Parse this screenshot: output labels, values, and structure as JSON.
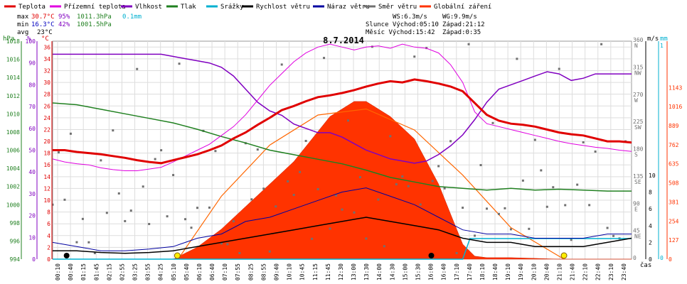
{
  "chart_data": {
    "type": "line",
    "title": "8.7.2014",
    "legend": [
      {
        "name": "Teplota",
        "color": "#e00000"
      },
      {
        "name": "Přízemní teplota",
        "color": "#e000e0"
      },
      {
        "name": "Vlhkost",
        "color": "#8000c0"
      },
      {
        "name": "Tlak",
        "color": "#208020"
      },
      {
        "name": "Srážky",
        "color": "#00b0d0"
      },
      {
        "name": "Rychlost větru",
        "color": "#000000"
      },
      {
        "name": "Náraz větru",
        "color": "#0000a0"
      },
      {
        "name": "Směr větru",
        "color": "#707070"
      },
      {
        "name": "Globální záření",
        "color": "#ff3300"
      }
    ],
    "stats": {
      "max_label": "max",
      "max_temp": "30.7°C",
      "max_hum": "95%",
      "max_press": "1011.3hPa",
      "precip": "0.1mm",
      "min_label": "min",
      "min_temp": "16.3°C",
      "min_hum": "42%",
      "min_press": "1001.5hPa",
      "avg_label": "avg",
      "avg_temp": "23°C"
    },
    "astro": {
      "ws": "WS:6.3m/s",
      "wg": "WG:9.9m/s",
      "slunce": "Slunce Východ:05:10",
      "slunce_z": "Západ:21:12",
      "mesic": "Měsíc  Východ:15:42",
      "mesic_z": "Západ:0:35"
    },
    "axes": {
      "hpa_label": "hPa",
      "pct_label": "%",
      "c_label": "°C",
      "hpa_ticks": [
        "1018",
        "1016",
        "1014",
        "1012",
        "1010",
        "1008",
        "1006",
        "1004",
        "1002",
        "1000",
        "998",
        "996",
        "994"
      ],
      "pct_ticks": [
        "100",
        "90",
        "80",
        "70",
        "60",
        "50",
        "40",
        "30",
        "20",
        "10",
        "0"
      ],
      "c_ticks": [
        "36",
        "34",
        "32",
        "30",
        "28",
        "26",
        "24",
        "22",
        "20",
        "18",
        "16",
        "14",
        "12",
        "10",
        "8",
        "6",
        "4",
        "2",
        "0"
      ],
      "dir_label": "m/s",
      "mm_label": "mm",
      "dir_ticks": [
        [
          "360",
          "N"
        ],
        [
          "315",
          "NW"
        ],
        [
          "270",
          "W"
        ],
        [
          "225",
          "SW"
        ],
        [
          "180",
          "S"
        ],
        [
          "135",
          "SE"
        ],
        [
          "90",
          "E"
        ],
        [
          "45",
          "NE"
        ],
        [
          "0",
          ""
        ]
      ],
      "ms_ticks": [
        "10",
        "8",
        "6",
        "4",
        "2",
        "0"
      ],
      "mm_ticks": [
        "1",
        "0"
      ],
      "rad_ticks": [
        "1143",
        "1016",
        "889",
        "762",
        "635",
        "508",
        "381",
        "254",
        "127",
        "0"
      ],
      "time_label": "čas",
      "time_ticks": [
        "00:10",
        "00:40",
        "01:15",
        "01:45",
        "02:15",
        "02:55",
        "03:25",
        "03:55",
        "04:25",
        "05:10",
        "05:40",
        "06:10",
        "06:40",
        "07:10",
        "07:55",
        "08:25",
        "08:55",
        "09:40",
        "10:10",
        "10:45",
        "11:15",
        "11:45",
        "12:30",
        "13:00",
        "13:30",
        "14:00",
        "14:30",
        "15:00",
        "15:30",
        "16:00",
        "16:40",
        "17:10",
        "17:40",
        "18:10",
        "18:40",
        "19:10",
        "19:40",
        "20:10",
        "20:40",
        "21:10",
        "21:40",
        "22:10",
        "22:40",
        "23:10",
        "23:40"
      ]
    },
    "ranges": {
      "temp_c": [
        0,
        37
      ],
      "humidity_pct": [
        0,
        100
      ],
      "pressure_hpa": [
        994,
        1018
      ],
      "wind_ms": [
        0,
        10
      ],
      "radiation_wm2": [
        0,
        1143
      ],
      "direction_deg": [
        0,
        360
      ],
      "hours": [
        0,
        24
      ]
    },
    "series_temperature": [
      [
        0.0,
        18.5
      ],
      [
        0.5,
        18.5
      ],
      [
        1.0,
        18.2
      ],
      [
        1.5,
        18.0
      ],
      [
        2.0,
        17.8
      ],
      [
        2.5,
        17.5
      ],
      [
        3.0,
        17.2
      ],
      [
        3.5,
        16.8
      ],
      [
        4.0,
        16.5
      ],
      [
        4.5,
        16.3
      ],
      [
        5.0,
        16.8
      ],
      [
        5.5,
        17.3
      ],
      [
        6.0,
        17.8
      ],
      [
        6.5,
        18.5
      ],
      [
        7.0,
        19.3
      ],
      [
        7.5,
        20.5
      ],
      [
        8.0,
        21.5
      ],
      [
        8.5,
        22.8
      ],
      [
        9.0,
        24.0
      ],
      [
        9.5,
        25.3
      ],
      [
        10.0,
        26.0
      ],
      [
        10.5,
        26.8
      ],
      [
        11.0,
        27.5
      ],
      [
        11.5,
        27.8
      ],
      [
        12.0,
        28.2
      ],
      [
        12.5,
        28.7
      ],
      [
        13.0,
        29.3
      ],
      [
        13.5,
        29.8
      ],
      [
        14.0,
        30.2
      ],
      [
        14.5,
        30.0
      ],
      [
        15.0,
        30.5
      ],
      [
        15.5,
        30.2
      ],
      [
        16.0,
        29.8
      ],
      [
        16.5,
        29.3
      ],
      [
        17.0,
        28.5
      ],
      [
        17.5,
        26.5
      ],
      [
        18.0,
        24.5
      ],
      [
        18.5,
        23.5
      ],
      [
        19.0,
        23.0
      ],
      [
        19.5,
        22.8
      ],
      [
        20.0,
        22.5
      ],
      [
        20.5,
        22.0
      ],
      [
        21.0,
        21.5
      ],
      [
        21.5,
        21.2
      ],
      [
        22.0,
        21.0
      ],
      [
        22.5,
        20.5
      ],
      [
        23.0,
        20.0
      ],
      [
        23.5,
        20.0
      ],
      [
        24.0,
        19.8
      ]
    ],
    "series_ground_temperature": [
      [
        0.0,
        17.0
      ],
      [
        0.5,
        16.5
      ],
      [
        1.0,
        16.2
      ],
      [
        1.5,
        16.0
      ],
      [
        2.0,
        15.5
      ],
      [
        2.5,
        15.2
      ],
      [
        3.0,
        15.0
      ],
      [
        3.5,
        15.0
      ],
      [
        4.0,
        15.3
      ],
      [
        4.5,
        15.6
      ],
      [
        5.0,
        16.5
      ],
      [
        5.5,
        17.5
      ],
      [
        6.0,
        18.5
      ],
      [
        6.5,
        19.5
      ],
      [
        7.0,
        21.0
      ],
      [
        7.5,
        22.5
      ],
      [
        8.0,
        24.5
      ],
      [
        8.5,
        27.0
      ],
      [
        9.0,
        29.5
      ],
      [
        9.5,
        31.5
      ],
      [
        10.0,
        33.5
      ],
      [
        10.5,
        35.0
      ],
      [
        11.0,
        36.0
      ],
      [
        11.5,
        36.5
      ],
      [
        12.0,
        36.0
      ],
      [
        12.5,
        35.5
      ],
      [
        13.0,
        36.0
      ],
      [
        13.5,
        36.2
      ],
      [
        14.0,
        35.8
      ],
      [
        14.5,
        36.5
      ],
      [
        15.0,
        36.0
      ],
      [
        15.5,
        35.8
      ],
      [
        16.0,
        35.0
      ],
      [
        16.5,
        33.0
      ],
      [
        17.0,
        30.0
      ],
      [
        17.5,
        25.0
      ],
      [
        18.0,
        23.0
      ],
      [
        18.5,
        22.5
      ],
      [
        19.0,
        22.0
      ],
      [
        19.5,
        21.5
      ],
      [
        20.0,
        21.0
      ],
      [
        20.5,
        20.5
      ],
      [
        21.0,
        20.0
      ],
      [
        21.5,
        19.6
      ],
      [
        22.0,
        19.3
      ],
      [
        22.5,
        19.0
      ],
      [
        23.0,
        18.8
      ],
      [
        23.5,
        18.5
      ],
      [
        24.0,
        18.3
      ]
    ],
    "series_humidity": [
      [
        0.0,
        94
      ],
      [
        0.5,
        94
      ],
      [
        1.0,
        94
      ],
      [
        1.5,
        94
      ],
      [
        2.0,
        94
      ],
      [
        2.5,
        94
      ],
      [
        3.0,
        94
      ],
      [
        3.5,
        94
      ],
      [
        4.0,
        94
      ],
      [
        4.5,
        94
      ],
      [
        5.0,
        93
      ],
      [
        5.5,
        92
      ],
      [
        6.0,
        91
      ],
      [
        6.5,
        90
      ],
      [
        7.0,
        88
      ],
      [
        7.5,
        84
      ],
      [
        8.0,
        78
      ],
      [
        8.5,
        72
      ],
      [
        9.0,
        68
      ],
      [
        9.5,
        66
      ],
      [
        10.0,
        62
      ],
      [
        10.5,
        60
      ],
      [
        11.0,
        58
      ],
      [
        11.5,
        58
      ],
      [
        12.0,
        56
      ],
      [
        12.5,
        53
      ],
      [
        13.0,
        50
      ],
      [
        13.5,
        48
      ],
      [
        14.0,
        46
      ],
      [
        14.5,
        45
      ],
      [
        15.0,
        44
      ],
      [
        15.5,
        45
      ],
      [
        16.0,
        48
      ],
      [
        16.5,
        52
      ],
      [
        17.0,
        57
      ],
      [
        17.5,
        64
      ],
      [
        18.0,
        72
      ],
      [
        18.5,
        78
      ],
      [
        19.0,
        80
      ],
      [
        19.5,
        82
      ],
      [
        20.0,
        84
      ],
      [
        20.5,
        86
      ],
      [
        21.0,
        85
      ],
      [
        21.5,
        82
      ],
      [
        22.0,
        83
      ],
      [
        22.5,
        85
      ],
      [
        23.0,
        85
      ],
      [
        23.5,
        85
      ],
      [
        24.0,
        85
      ]
    ],
    "series_pressure": [
      [
        0.0,
        1011.2
      ],
      [
        1.0,
        1011.0
      ],
      [
        2.0,
        1010.5
      ],
      [
        3.0,
        1010.0
      ],
      [
        4.0,
        1009.5
      ],
      [
        5.0,
        1009.0
      ],
      [
        6.0,
        1008.3
      ],
      [
        7.0,
        1007.5
      ],
      [
        8.0,
        1006.8
      ],
      [
        9.0,
        1006.0
      ],
      [
        10.0,
        1005.5
      ],
      [
        11.0,
        1005.0
      ],
      [
        12.0,
        1004.5
      ],
      [
        13.0,
        1003.8
      ],
      [
        14.0,
        1003.0
      ],
      [
        15.0,
        1002.5
      ],
      [
        16.0,
        1002.0
      ],
      [
        17.0,
        1001.8
      ],
      [
        18.0,
        1001.6
      ],
      [
        19.0,
        1001.8
      ],
      [
        20.0,
        1001.6
      ],
      [
        21.0,
        1001.7
      ],
      [
        22.0,
        1001.6
      ],
      [
        23.0,
        1001.5
      ],
      [
        24.0,
        1001.5
      ]
    ],
    "series_precipitation_mm": [
      [
        0.0,
        0
      ],
      [
        17.0,
        0
      ],
      [
        17.3,
        0.1
      ],
      [
        24.0,
        0.1
      ]
    ],
    "series_wind_speed": [
      [
        0.0,
        1.0
      ],
      [
        1.0,
        1.0
      ],
      [
        2.0,
        0.8
      ],
      [
        3.0,
        0.7
      ],
      [
        4.0,
        0.8
      ],
      [
        5.0,
        1.0
      ],
      [
        6.0,
        1.5
      ],
      [
        7.0,
        2.0
      ],
      [
        8.0,
        2.5
      ],
      [
        9.0,
        3.0
      ],
      [
        10.0,
        3.5
      ],
      [
        11.0,
        4.0
      ],
      [
        12.0,
        4.5
      ],
      [
        13.0,
        5.0
      ],
      [
        14.0,
        4.5
      ],
      [
        15.0,
        4.0
      ],
      [
        16.0,
        3.5
      ],
      [
        17.0,
        2.5
      ],
      [
        18.0,
        2.0
      ],
      [
        19.0,
        2.0
      ],
      [
        20.0,
        1.5
      ],
      [
        21.0,
        1.5
      ],
      [
        22.0,
        1.5
      ],
      [
        23.0,
        2.0
      ],
      [
        24.0,
        2.5
      ]
    ],
    "series_wind_gust": [
      [
        0.0,
        2.0
      ],
      [
        1.0,
        1.5
      ],
      [
        2.0,
        1.0
      ],
      [
        3.0,
        1.0
      ],
      [
        4.0,
        1.2
      ],
      [
        5.0,
        1.5
      ],
      [
        6.0,
        2.5
      ],
      [
        7.0,
        3.0
      ],
      [
        8.0,
        4.5
      ],
      [
        9.0,
        5.0
      ],
      [
        10.0,
        6.0
      ],
      [
        11.0,
        7.0
      ],
      [
        12.0,
        8.0
      ],
      [
        13.0,
        8.5
      ],
      [
        14.0,
        7.5
      ],
      [
        15.0,
        6.5
      ],
      [
        16.0,
        5.0
      ],
      [
        17.0,
        3.5
      ],
      [
        18.0,
        3.0
      ],
      [
        19.0,
        3.0
      ],
      [
        20.0,
        2.5
      ],
      [
        21.0,
        2.5
      ],
      [
        22.0,
        2.5
      ],
      [
        23.0,
        3.0
      ],
      [
        24.0,
        3.0
      ]
    ],
    "series_radiation": [
      [
        0.0,
        0
      ],
      [
        5.0,
        0
      ],
      [
        6.0,
        80
      ],
      [
        7.0,
        200
      ],
      [
        8.0,
        350
      ],
      [
        9.0,
        500
      ],
      [
        10.0,
        650
      ],
      [
        11.0,
        850
      ],
      [
        11.5,
        950
      ],
      [
        12.0,
        1000
      ],
      [
        12.5,
        1050
      ],
      [
        13.0,
        1050
      ],
      [
        13.5,
        1000
      ],
      [
        14.0,
        950
      ],
      [
        15.0,
        800
      ],
      [
        16.0,
        500
      ],
      [
        16.5,
        300
      ],
      [
        17.0,
        100
      ],
      [
        17.5,
        20
      ],
      [
        18.0,
        10
      ],
      [
        19.0,
        10
      ],
      [
        20.0,
        5
      ],
      [
        21.0,
        0
      ],
      [
        24.0,
        0
      ]
    ],
    "series_clear_sky_radiation": [
      [
        5.2,
        0
      ],
      [
        7.0,
        420
      ],
      [
        9.0,
        760
      ],
      [
        11.0,
        960
      ],
      [
        13.0,
        1000
      ],
      [
        15.0,
        860
      ],
      [
        17.0,
        560
      ],
      [
        19.0,
        210
      ],
      [
        21.2,
        0
      ]
    ],
    "sun_markers_hours": [
      5.17,
      21.2
    ],
    "moon_markers_hours": [
      0.58,
      15.7
    ]
  }
}
